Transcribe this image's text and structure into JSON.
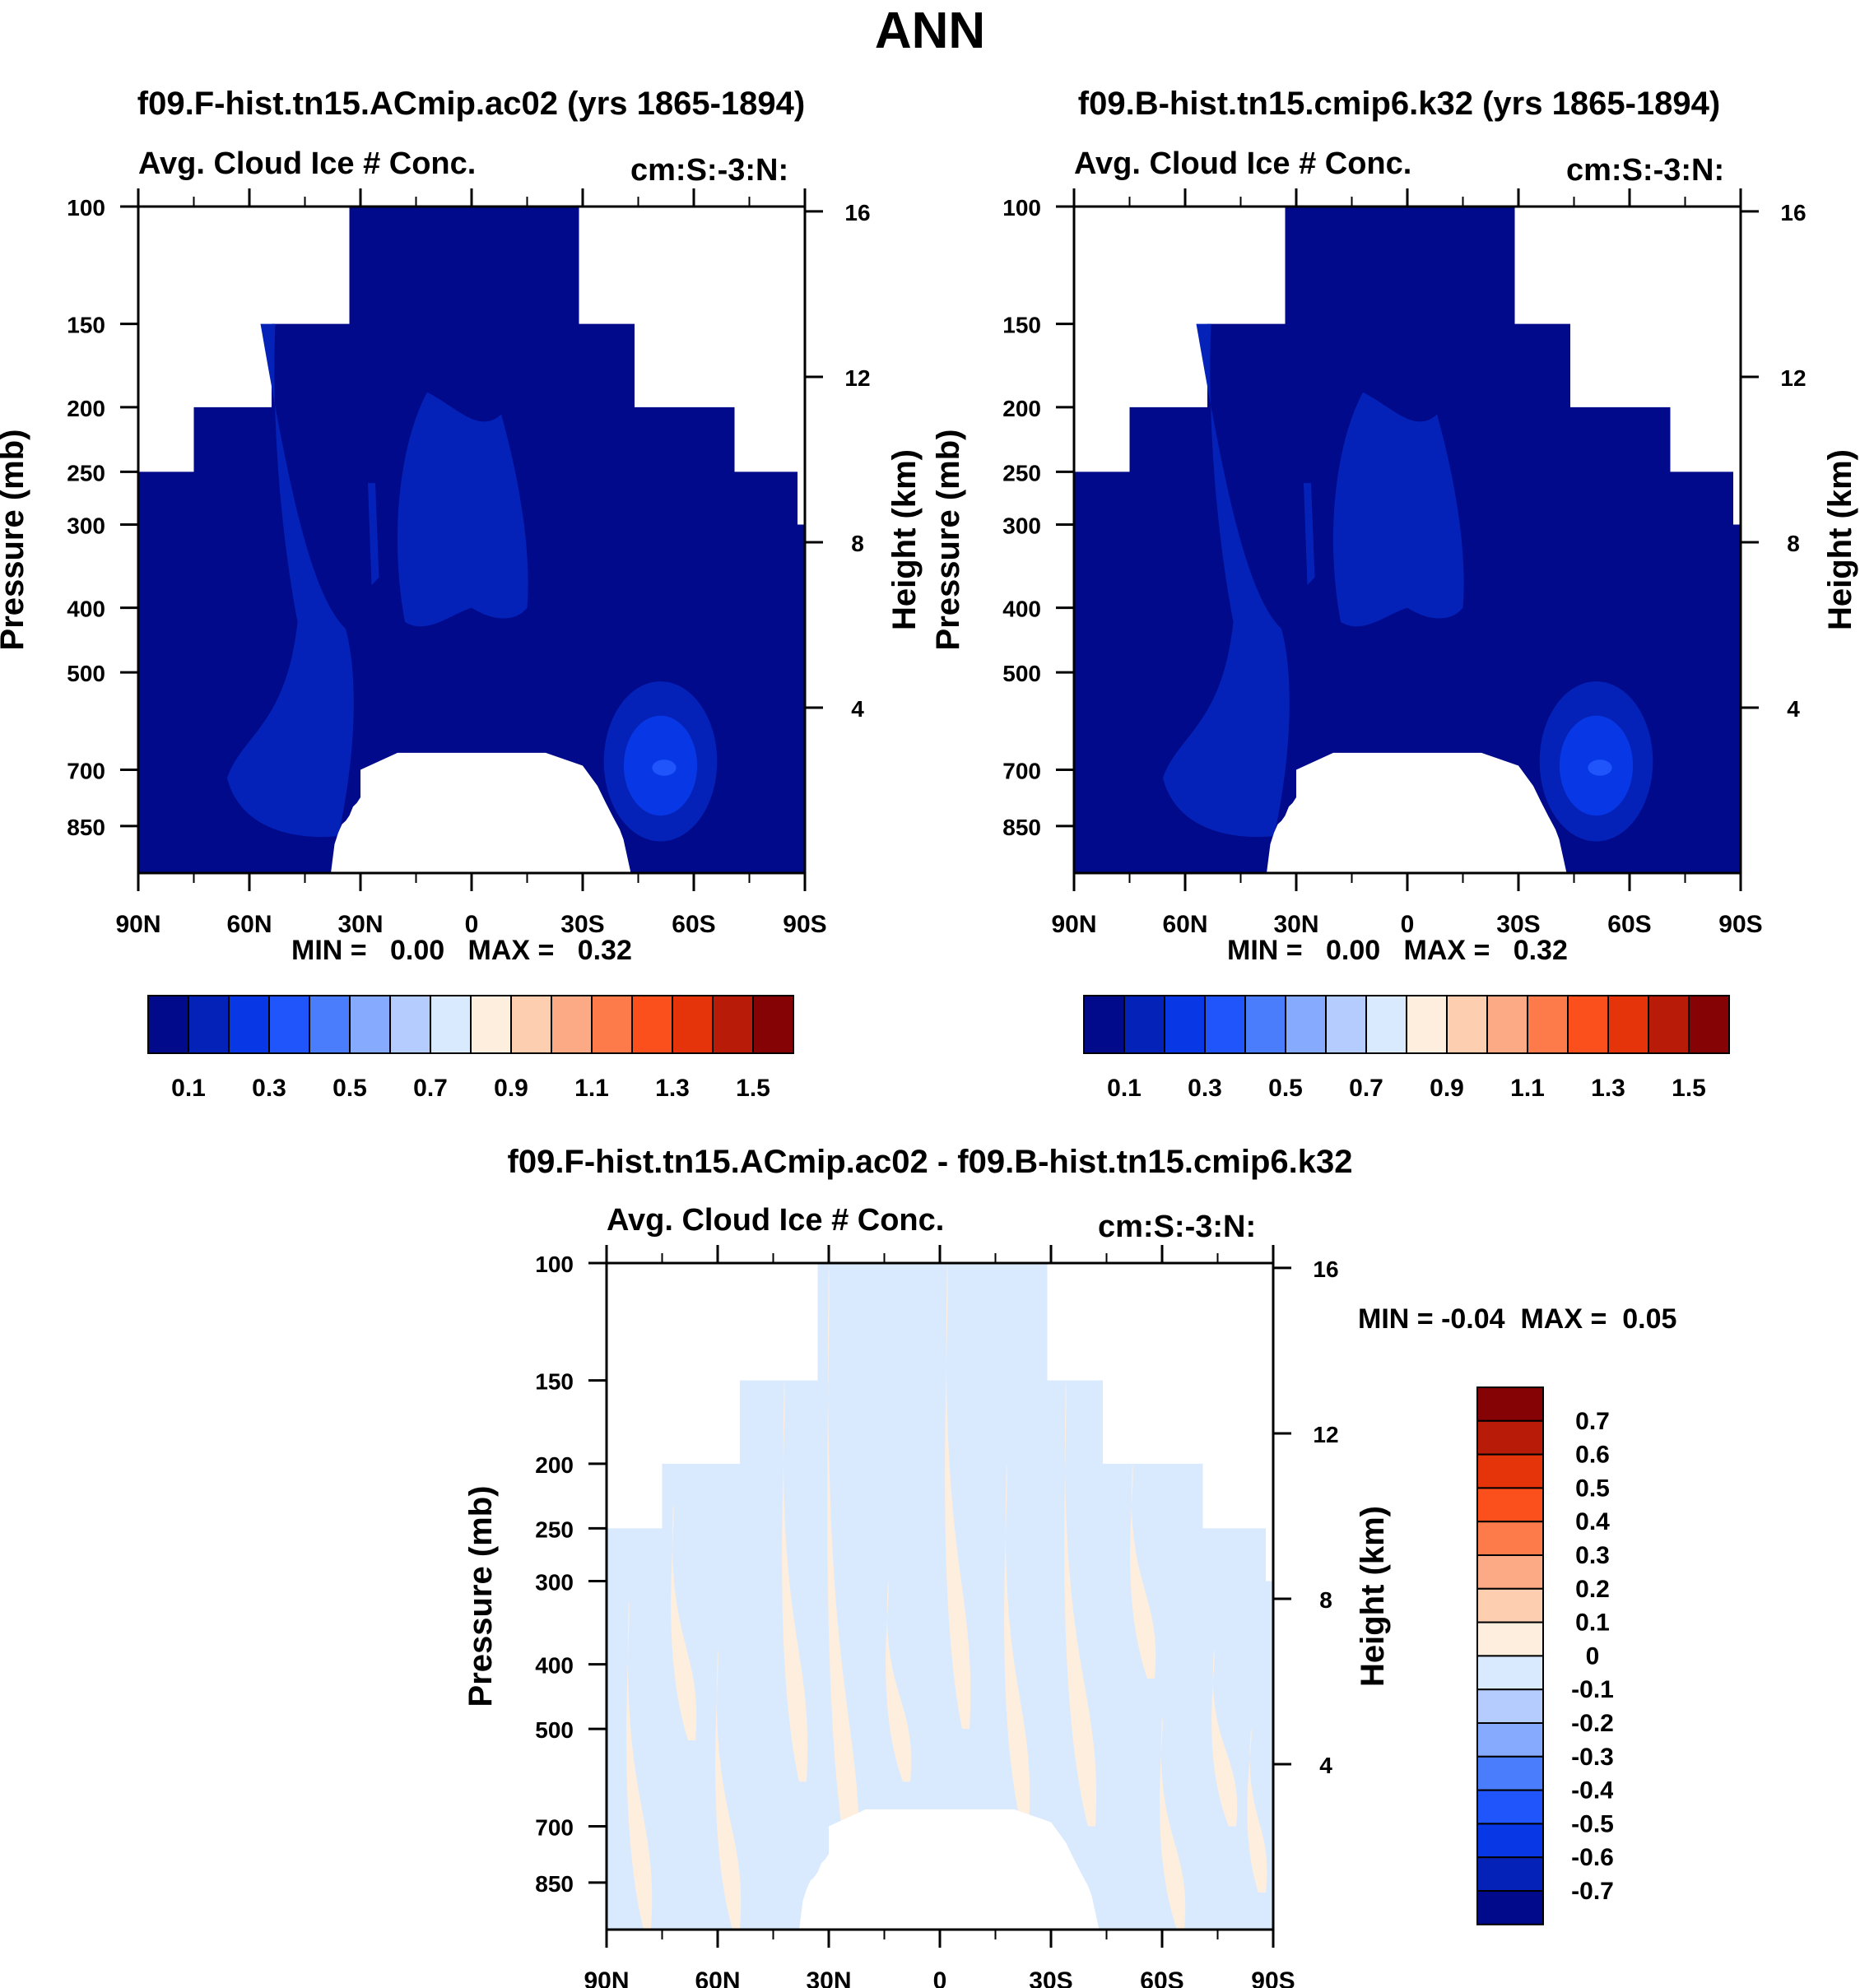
{
  "main_title": "ANN",
  "chart_data": [
    {
      "type": "heatmap",
      "title": "f09.F-hist.tn15.ACmip.ac02 (yrs 1865-1894)",
      "subtitle_left": "Avg. Cloud Ice # Conc.",
      "subtitle_right": "cm:S:-3:N:",
      "ylabel": "Pressure (mb)",
      "ylabel_right": "Height (km)",
      "x_tick_labels": [
        "90N",
        "60N",
        "30N",
        "0",
        "30S",
        "60S",
        "90S"
      ],
      "x_ticks": [
        90,
        60,
        30,
        0,
        -30,
        -60,
        -90
      ],
      "xlim": [
        90,
        -90
      ],
      "y_tick_labels": [
        "100",
        "150",
        "200",
        "250",
        "300",
        "400",
        "500",
        "700",
        "850"
      ],
      "y_ticks": [
        100,
        150,
        200,
        250,
        300,
        400,
        500,
        700,
        850
      ],
      "ylim": [
        100,
        1000
      ],
      "height_tick_labels": [
        "16",
        "12",
        "8",
        "4"
      ],
      "height_ticks_km": [
        16,
        12,
        8,
        4
      ],
      "min_label": "MIN =",
      "min_value": "0.00",
      "max_label": "MAX =",
      "max_value": "0.32",
      "colorbar": {
        "orientation": "horizontal",
        "colors": [
          "#000a8a",
          "#0522b8",
          "#0838e6",
          "#1f55fb",
          "#4a7dfc",
          "#86aafd",
          "#b5ccfe",
          "#daeafe",
          "#feeede",
          "#fdceb0",
          "#fcaa86",
          "#fd7a4a",
          "#fb501b",
          "#e5340a",
          "#b81b08",
          "#850205"
        ],
        "labels": [
          "0.1",
          "0.3",
          "0.5",
          "0.7",
          "0.9",
          "1.1",
          "1.3",
          "1.5"
        ]
      }
    },
    {
      "type": "heatmap",
      "title": "f09.B-hist.tn15.cmip6.k32 (yrs 1865-1894)",
      "subtitle_left": "Avg. Cloud Ice # Conc.",
      "subtitle_right": "cm:S:-3:N:",
      "ylabel": "Pressure (mb)",
      "ylabel_right": "Height (km)",
      "x_tick_labels": [
        "90N",
        "60N",
        "30N",
        "0",
        "30S",
        "60S",
        "90S"
      ],
      "x_ticks": [
        90,
        60,
        30,
        0,
        -30,
        -60,
        -90
      ],
      "xlim": [
        90,
        -90
      ],
      "y_tick_labels": [
        "100",
        "150",
        "200",
        "250",
        "300",
        "400",
        "500",
        "700",
        "850"
      ],
      "y_ticks": [
        100,
        150,
        200,
        250,
        300,
        400,
        500,
        700,
        850
      ],
      "ylim": [
        100,
        1000
      ],
      "height_tick_labels": [
        "16",
        "12",
        "8",
        "4"
      ],
      "height_ticks_km": [
        16,
        12,
        8,
        4
      ],
      "min_label": "MIN =",
      "min_value": "0.00",
      "max_label": "MAX =",
      "max_value": "0.32",
      "colorbar": {
        "orientation": "horizontal",
        "colors": [
          "#000a8a",
          "#0522b8",
          "#0838e6",
          "#1f55fb",
          "#4a7dfc",
          "#86aafd",
          "#b5ccfe",
          "#daeafe",
          "#feeede",
          "#fdceb0",
          "#fcaa86",
          "#fd7a4a",
          "#fb501b",
          "#e5340a",
          "#b81b08",
          "#850205"
        ],
        "labels": [
          "0.1",
          "0.3",
          "0.5",
          "0.7",
          "0.9",
          "1.1",
          "1.3",
          "1.5"
        ]
      }
    },
    {
      "type": "heatmap",
      "title": "f09.F-hist.tn15.ACmip.ac02 - f09.B-hist.tn15.cmip6.k32",
      "subtitle_left": "Avg. Cloud Ice # Conc.",
      "subtitle_right": "cm:S:-3:N:",
      "ylabel": "Pressure (mb)",
      "ylabel_right": "Height (km)",
      "x_tick_labels": [
        "90N",
        "60N",
        "30N",
        "0",
        "30S",
        "60S",
        "90S"
      ],
      "x_ticks": [
        90,
        60,
        30,
        0,
        -30,
        -60,
        -90
      ],
      "xlim": [
        90,
        -90
      ],
      "y_tick_labels": [
        "100",
        "150",
        "200",
        "250",
        "300",
        "400",
        "500",
        "700",
        "850"
      ],
      "y_ticks": [
        100,
        150,
        200,
        250,
        300,
        400,
        500,
        700,
        850
      ],
      "ylim": [
        100,
        1000
      ],
      "height_tick_labels": [
        "16",
        "12",
        "8",
        "4"
      ],
      "height_ticks_km": [
        16,
        12,
        8,
        4
      ],
      "min_label": "MIN =",
      "min_value": "-0.04",
      "max_label": "MAX =",
      "max_value": "0.05",
      "colorbar": {
        "orientation": "vertical",
        "colors": [
          "#850205",
          "#b81b08",
          "#e5340a",
          "#fb501b",
          "#fd7a4a",
          "#fcaa86",
          "#fdceb0",
          "#feeede",
          "#daeafe",
          "#b5ccfe",
          "#86aafd",
          "#4a7dfc",
          "#1f55fb",
          "#0838e6",
          "#0522b8",
          "#000a8a"
        ],
        "labels": [
          "0.7",
          "0.6",
          "0.5",
          "0.4",
          "0.3",
          "0.2",
          "0.1",
          "0",
          "-0.1",
          "-0.2",
          "-0.3",
          "-0.4",
          "-0.5",
          "-0.6",
          "-0.7"
        ]
      }
    }
  ]
}
